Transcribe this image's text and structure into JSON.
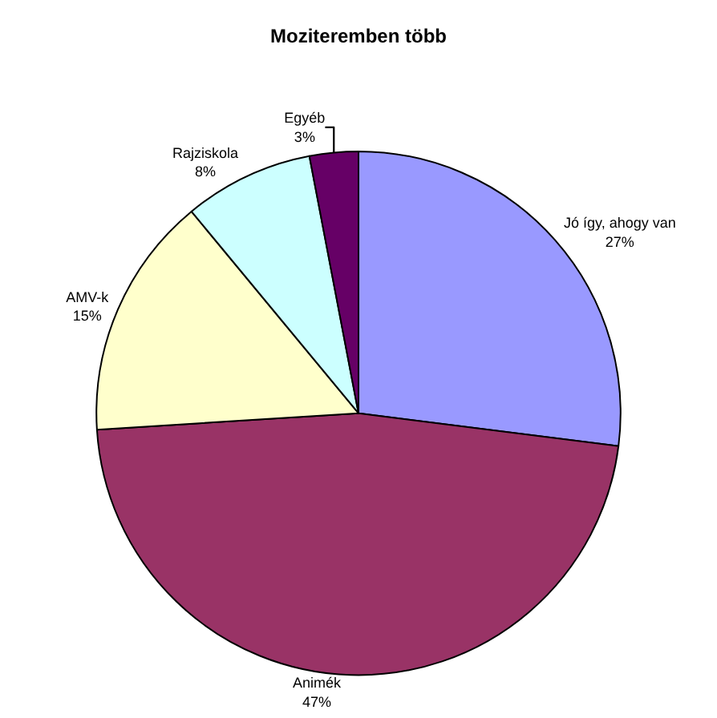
{
  "chart_data": {
    "type": "pie",
    "title": "Moziteremben több",
    "categories": [
      "Jó így, ahogy van",
      "Animék",
      "AMV-k",
      "Rajziskola",
      "Egyéb"
    ],
    "values": [
      27,
      47,
      15,
      8,
      3
    ],
    "colors": [
      "#9999ff",
      "#993366",
      "#ffffcc",
      "#ccffff",
      "#660066"
    ],
    "value_labels": [
      "27%",
      "47%",
      "15%",
      "8%",
      "3%"
    ],
    "legend": false
  }
}
